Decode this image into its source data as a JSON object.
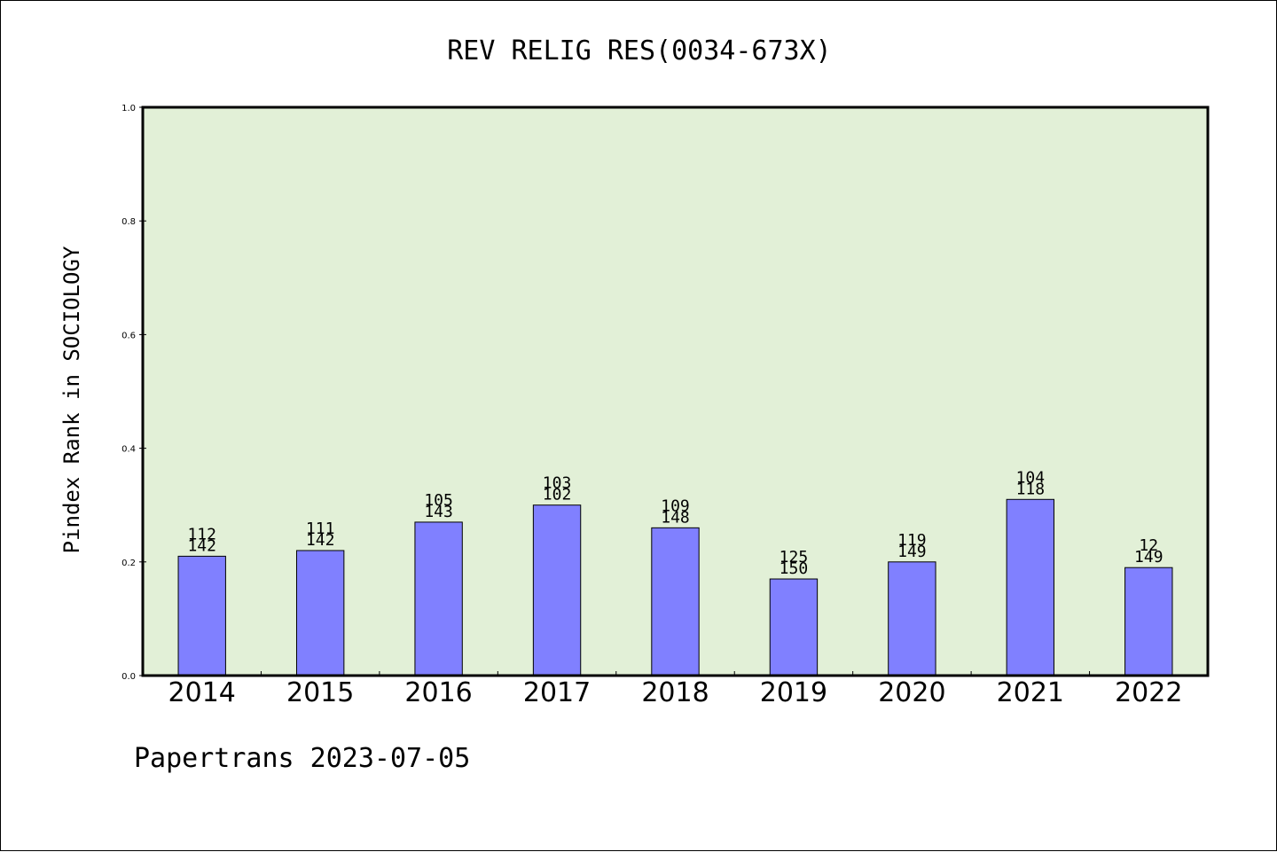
{
  "footer": "Papertrans 2023-07-05",
  "colors": {
    "plot_background": "#e2f0d7",
    "bar_fill": "#8080ff",
    "bar_stroke": "#000000",
    "axis": "#000000"
  },
  "chart_data": {
    "type": "bar",
    "title": "REV RELIG RES(0034-673X)",
    "xlabel": "",
    "ylabel": "Pindex Rank in SOCIOLOGY",
    "ylim": [
      0,
      1.0
    ],
    "yticks": [
      "0.0",
      "0.2",
      "0.4",
      "0.6",
      "0.8",
      "1.0"
    ],
    "grid": false,
    "categories": [
      "2014",
      "2015",
      "2016",
      "2017",
      "2018",
      "2019",
      "2020",
      "2021",
      "2022"
    ],
    "values": [
      0.21,
      0.22,
      0.27,
      0.3,
      0.26,
      0.17,
      0.2,
      0.31,
      0.19
    ],
    "rank_labels": [
      "112",
      "111",
      "105",
      "103",
      "109",
      "125",
      "119",
      "104",
      "12"
    ],
    "total_labels": [
      "142",
      "142",
      "143",
      "102",
      "148",
      "150",
      "149",
      "118",
      "149"
    ]
  }
}
